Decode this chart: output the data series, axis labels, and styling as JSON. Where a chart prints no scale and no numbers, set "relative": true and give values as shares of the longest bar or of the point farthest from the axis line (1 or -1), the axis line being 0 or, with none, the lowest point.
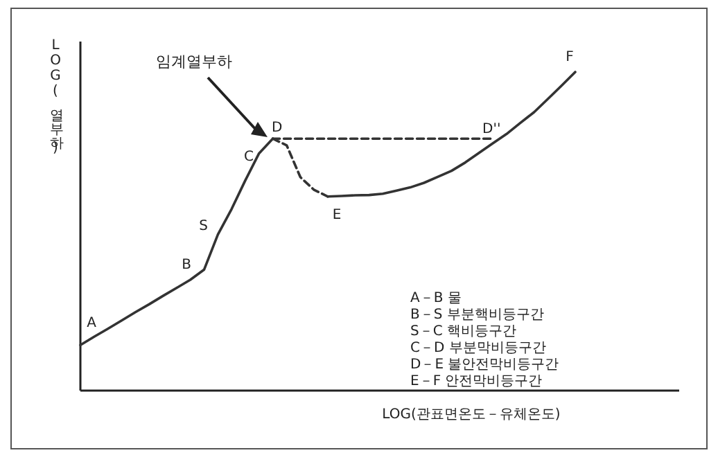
{
  "chart_data": {
    "type": "line",
    "relative": true,
    "xlabel": "LOG(관표면온도－유체온도)",
    "ylabel": "LOG(열부하)",
    "tick_labels": false,
    "categories": [
      null,
      null,
      null,
      null,
      null,
      null,
      null,
      null,
      null,
      null,
      null,
      null,
      null,
      null,
      null,
      null,
      null,
      null,
      null,
      null,
      null,
      null,
      null,
      null,
      null,
      null,
      null,
      null,
      null,
      null,
      null,
      null,
      null,
      null,
      null,
      null,
      null
    ],
    "series": [
      {
        "color": "#333333",
        "line_style": "solid",
        "values": [
          0.143,
          0.169,
          0.194,
          0.22,
          0.246,
          0.271,
          0.297,
          0.322,
          0.348,
          0.38,
          0.49,
          0.57,
          0.66,
          0.745,
          0.791,
          null,
          null,
          null,
          null,
          null,
          null,
          null,
          null,
          null,
          null,
          null,
          null,
          null,
          null,
          null,
          null,
          null,
          null,
          null,
          null,
          null,
          null
        ]
      },
      {
        "color": "#333333",
        "line_style": "dashed",
        "values": [
          null,
          null,
          null,
          null,
          null,
          null,
          null,
          null,
          null,
          null,
          null,
          null,
          null,
          null,
          0.791,
          0.77,
          0.67,
          0.63,
          0.609,
          null,
          null,
          null,
          null,
          null,
          null,
          null,
          null,
          null,
          null,
          null,
          null,
          null,
          null,
          null,
          null,
          null,
          null
        ]
      },
      {
        "color": "#333333",
        "line_style": "solid",
        "values": [
          null,
          null,
          null,
          null,
          null,
          null,
          null,
          null,
          null,
          null,
          null,
          null,
          null,
          null,
          null,
          null,
          null,
          null,
          0.609,
          0.611,
          0.613,
          0.614,
          0.618,
          0.628,
          0.638,
          0.652,
          0.671,
          0.69,
          0.716,
          0.746,
          0.776,
          0.805,
          0.84,
          0.874,
          0.915,
          0.957,
          1
        ]
      },
      {
        "color": "#333333",
        "line_style": "dashed",
        "values": [
          null,
          null,
          null,
          null,
          null,
          null,
          null,
          null,
          null,
          null,
          null,
          null,
          null,
          null,
          0.791,
          0.791,
          0.791,
          0.791,
          0.791,
          0.791,
          0.791,
          0.791,
          0.791,
          0.791,
          0.791,
          0.791,
          0.791,
          0.791,
          0.791,
          0.791,
          0.791,
          null,
          null,
          null,
          null,
          null,
          null
        ]
      }
    ],
    "annotations": [
      "A",
      "B",
      "S",
      "C",
      "D",
      "E",
      "D''",
      "F",
      "임계열부하",
      "A－B 물",
      "B－S 부분핵비등구간",
      "S－C 핵비등구간",
      "C－D 부분막비등구간",
      "D－E 불안전막비등구간",
      "E－F 안전막비등구간"
    ]
  }
}
